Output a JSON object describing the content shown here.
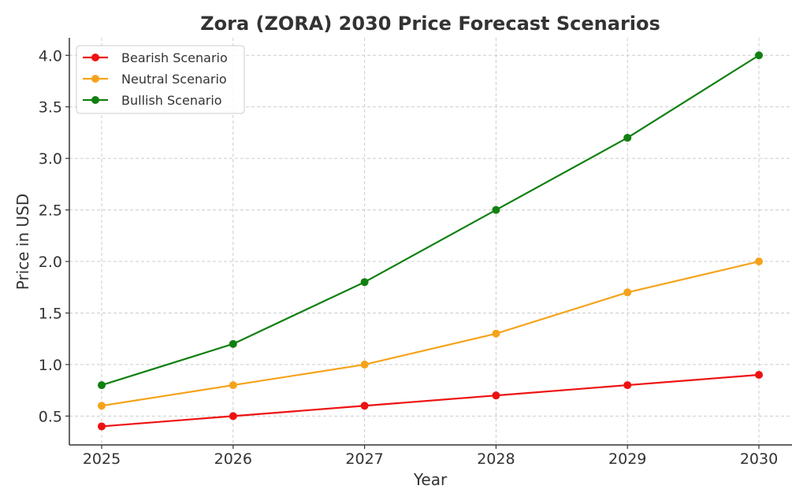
{
  "chart_data": {
    "type": "line",
    "title": "Zora (ZORA) 2030 Price Forecast Scenarios",
    "xlabel": "Year",
    "ylabel": "Price in USD",
    "categories": [
      "2025",
      "2026",
      "2027",
      "2028",
      "2029",
      "2030"
    ],
    "y_ticks": [
      "0.5",
      "1.0",
      "1.5",
      "2.0",
      "2.5",
      "3.0",
      "3.5",
      "4.0"
    ],
    "ylim": [
      0.22,
      4.17
    ],
    "grid": true,
    "legend_position": "top-left",
    "series": [
      {
        "name": "Bearish Scenario",
        "color": "#ee1111",
        "values": [
          0.4,
          0.5,
          0.6,
          0.7,
          0.8,
          0.9
        ]
      },
      {
        "name": "Neutral Scenario",
        "color": "#f5a31a",
        "values": [
          0.6,
          0.8,
          1.0,
          1.3,
          1.7,
          2.0
        ]
      },
      {
        "name": "Bullish Scenario",
        "color": "#118011",
        "values": [
          0.8,
          1.2,
          1.8,
          2.5,
          3.2,
          4.0
        ]
      }
    ]
  }
}
